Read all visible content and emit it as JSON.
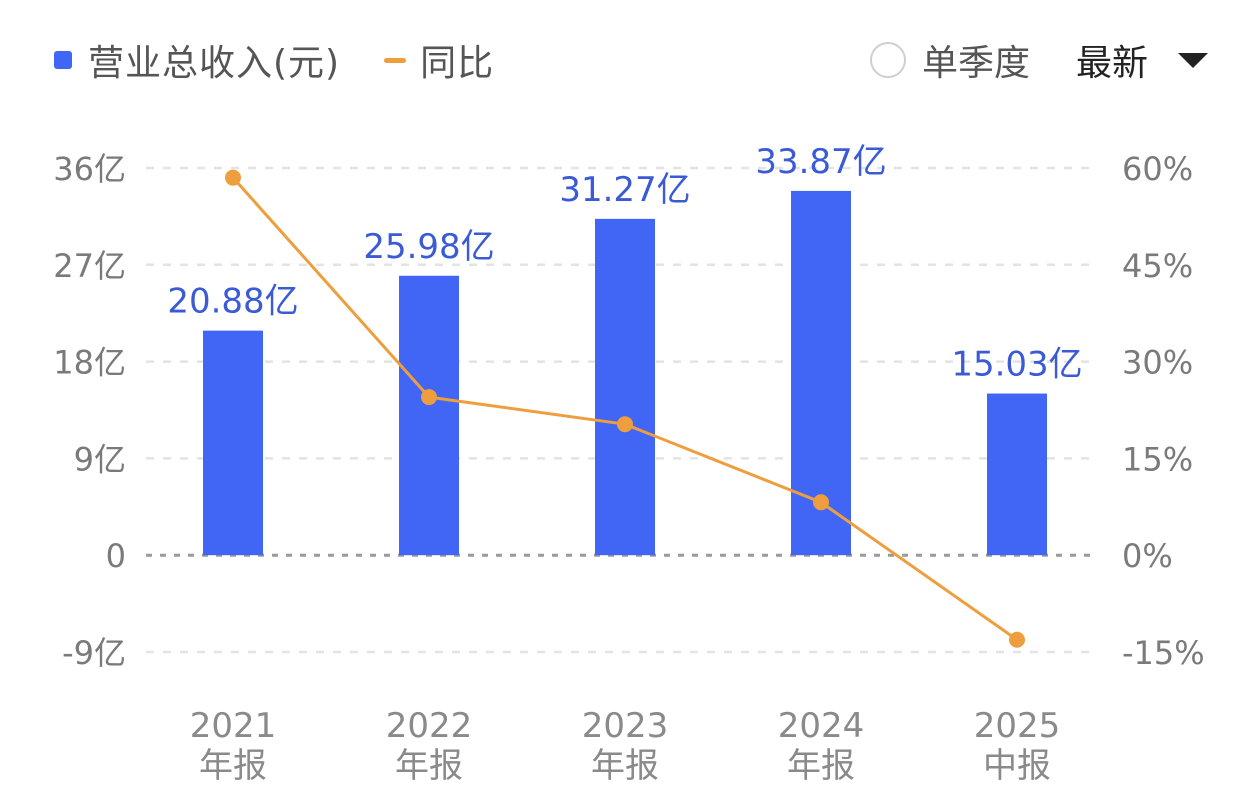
{
  "legend": {
    "bar_label": "营业总收入(元)",
    "line_label": "同比"
  },
  "controls": {
    "single_quarter_label": "单季度",
    "latest_label": "最新"
  },
  "colors": {
    "bar": "#4166F5",
    "line": "#EE9E3C",
    "bar_label": "#3B5BD6",
    "grid": "#e3e3e3",
    "zero": "#9a9a9a"
  },
  "icons": {
    "radio": "radio-button-icon",
    "dropdown": "triangle-down-icon"
  },
  "chart_data": {
    "type": "bar",
    "categories": [
      [
        "2021",
        "年报"
      ],
      [
        "2022",
        "年报"
      ],
      [
        "2023",
        "年报"
      ],
      [
        "2024",
        "年报"
      ],
      [
        "2025",
        "中报"
      ]
    ],
    "series": [
      {
        "name": "营业总收入(元)",
        "type": "bar",
        "axis": "left",
        "values": [
          20.88,
          25.98,
          31.27,
          33.87,
          15.03
        ],
        "value_labels": [
          "20.88亿",
          "25.98亿",
          "31.27亿",
          "33.87亿",
          "15.03亿"
        ]
      },
      {
        "name": "同比",
        "type": "line",
        "axis": "right",
        "values": [
          58.5,
          24.5,
          20.3,
          8.2,
          -13.1
        ]
      }
    ],
    "y_left": {
      "ticks": [
        36,
        27,
        18,
        9,
        0,
        -9
      ],
      "tick_labels": [
        "36亿",
        "27亿",
        "18亿",
        "9亿",
        "0",
        "-9亿"
      ],
      "ylim": [
        -9,
        36
      ]
    },
    "y_right": {
      "ticks": [
        60,
        45,
        30,
        15,
        0,
        -15
      ],
      "tick_labels": [
        "60%",
        "45%",
        "30%",
        "15%",
        "0%",
        "-15%"
      ],
      "ylim": [
        -15,
        60
      ]
    },
    "grid": true,
    "legend_position": "top-left"
  }
}
